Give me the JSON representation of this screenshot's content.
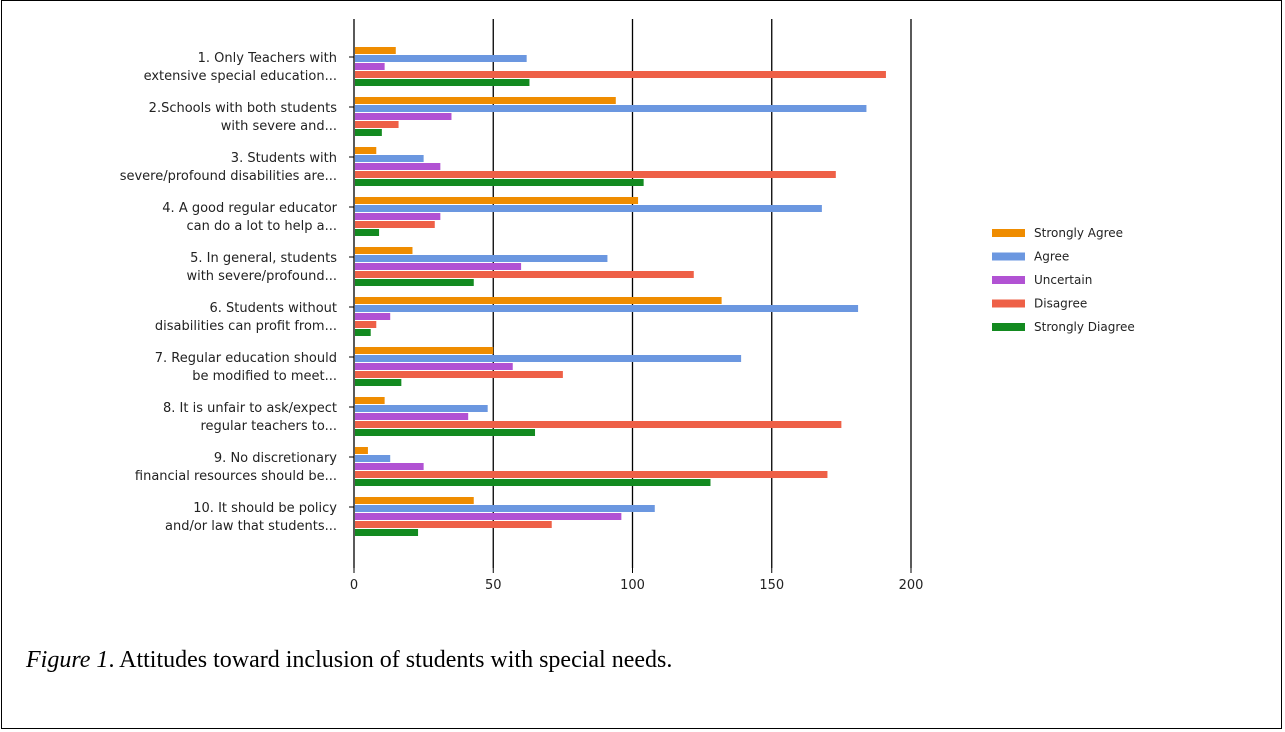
{
  "caption": {
    "figure_label": "Figure 1",
    "text": ". Attitudes toward inclusion of students with special needs."
  },
  "colors": {
    "Strongly Agree": "#ef8c00",
    "Agree": "#6b97e0",
    "Uncertain": "#b152d3",
    "Disagree": "#ee6047",
    "Strongly Diagree": "#138a20"
  },
  "chart_data": {
    "type": "bar",
    "orientation": "horizontal",
    "title": "",
    "xlabel": "",
    "ylabel": "",
    "xlim": [
      0,
      200
    ],
    "xticks": [
      0,
      50,
      100,
      150,
      200
    ],
    "grid": true,
    "legend_position": "right",
    "categories": [
      [
        "1. Only Teachers with",
        "extensive special education..."
      ],
      [
        "2.Schools with both students",
        "with severe and..."
      ],
      [
        "3. Students with",
        "severe/profound disabilities are..."
      ],
      [
        "4. A good regular educator",
        "can do a lot to help a..."
      ],
      [
        "5. In general, students",
        "with severe/profound..."
      ],
      [
        "6. Students without",
        "disabilities can profit from..."
      ],
      [
        "7. Regular education should",
        "be modified to meet..."
      ],
      [
        "8. It is unfair to ask/expect",
        "regular teachers to..."
      ],
      [
        "9. No discretionary",
        "financial resources should be..."
      ],
      [
        "10. It should be policy",
        "and/or law that students..."
      ]
    ],
    "series": [
      {
        "name": "Strongly Agree",
        "values": [
          15,
          94,
          8,
          102,
          21,
          132,
          50,
          11,
          5,
          43
        ]
      },
      {
        "name": "Agree",
        "values": [
          62,
          184,
          25,
          168,
          91,
          181,
          139,
          48,
          13,
          108
        ]
      },
      {
        "name": "Uncertain",
        "values": [
          11,
          35,
          31,
          31,
          60,
          13,
          57,
          41,
          25,
          96
        ]
      },
      {
        "name": "Disagree",
        "values": [
          191,
          16,
          173,
          29,
          122,
          8,
          75,
          175,
          170,
          71
        ]
      },
      {
        "name": "Strongly Diagree",
        "values": [
          63,
          10,
          104,
          9,
          43,
          6,
          17,
          65,
          128,
          23
        ]
      }
    ]
  }
}
